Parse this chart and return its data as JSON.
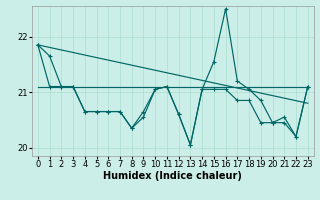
{
  "title": "",
  "xlabel": "Humidex (Indice chaleur)",
  "bg_color": "#cceee8",
  "grid_color": "#aaddcc",
  "line_color": "#006666",
  "x": [
    0,
    1,
    2,
    3,
    4,
    5,
    6,
    7,
    8,
    9,
    10,
    11,
    12,
    13,
    14,
    15,
    16,
    17,
    18,
    19,
    20,
    21,
    22,
    23
  ],
  "series1": [
    21.85,
    21.65,
    21.1,
    21.1,
    20.65,
    20.65,
    20.65,
    20.65,
    20.35,
    20.55,
    21.05,
    21.1,
    20.6,
    20.05,
    21.05,
    21.55,
    22.5,
    21.2,
    21.05,
    20.85,
    20.45,
    20.45,
    20.2,
    21.1
  ],
  "series2": [
    21.85,
    21.1,
    21.1,
    21.1,
    20.65,
    20.65,
    20.65,
    20.65,
    20.35,
    20.65,
    21.05,
    21.1,
    20.6,
    20.05,
    21.05,
    21.05,
    21.05,
    20.85,
    20.85,
    20.45,
    20.45,
    20.55,
    20.2,
    21.1
  ],
  "trend1": [
    21.85,
    20.8
  ],
  "trend2": [
    21.1,
    21.1
  ],
  "ylim": [
    19.85,
    22.55
  ],
  "yticks": [
    20,
    21,
    22
  ],
  "xlim": [
    -0.5,
    23.5
  ],
  "figsize": [
    3.2,
    2.0
  ],
  "dpi": 100,
  "xlabel_fontsize": 7,
  "tick_fontsize": 6,
  "marker_size": 3.5,
  "line_width": 0.85
}
